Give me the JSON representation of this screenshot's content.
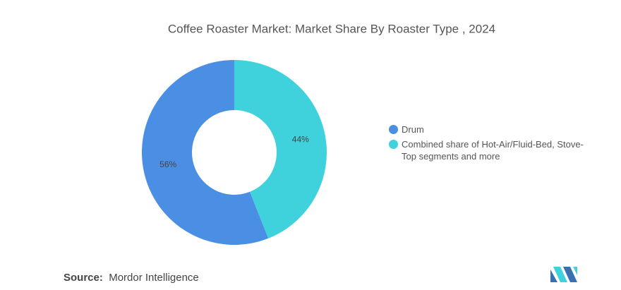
{
  "chart_data": {
    "type": "donut",
    "title": "Coffee Roaster Market: Market Share By Roaster Type , 2024",
    "categories": [
      "Drum",
      "Combined share of Hot-Air/Fluid-Bed, Stove-Top segments and more"
    ],
    "values": [
      56,
      44
    ],
    "value_labels": [
      "56%",
      "44%"
    ],
    "colors": [
      "#4a8fe4",
      "#40d2dc"
    ]
  },
  "source_label": "Source:",
  "source": "Mordor Intelligence"
}
